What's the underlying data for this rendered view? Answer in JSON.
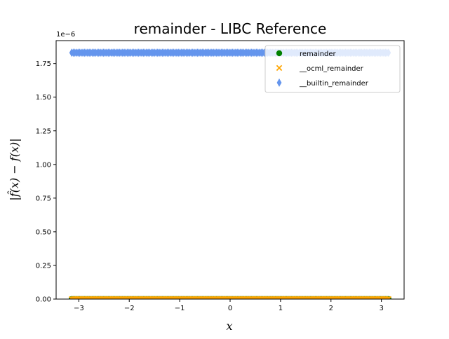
{
  "chart_data": {
    "type": "scatter",
    "title": "remainder - LIBC Reference",
    "xlabel": "x",
    "ylabel": "|f̂(x) − f(x)|",
    "y_offset_text": "1e−6",
    "xlim": [
      -3.45,
      3.45
    ],
    "ylim": [
      0,
      1.92
    ],
    "x_ticks": [
      -3,
      -2,
      -1,
      0,
      1,
      2,
      3
    ],
    "x_tick_labels": [
      "−3",
      "−2",
      "−1",
      "0",
      "1",
      "2",
      "3"
    ],
    "y_ticks": [
      0.0,
      0.25,
      0.5,
      0.75,
      1.0,
      1.25,
      1.5,
      1.75
    ],
    "y_tick_labels": [
      "0.00",
      "0.25",
      "0.50",
      "0.75",
      "1.00",
      "1.25",
      "1.50",
      "1.75"
    ],
    "x_domain": [
      -3.14159,
      3.14159
    ],
    "grid": false,
    "legend_placement": "top-right",
    "series": [
      {
        "name": "remainder",
        "marker": "circle",
        "color": "#008000",
        "constant_value": 0.0,
        "count": 200
      },
      {
        "name": "__ocml_remainder",
        "marker": "x",
        "color": "#FFA500",
        "constant_value": 0.0,
        "count": 200
      },
      {
        "name": "__builtin_remainder",
        "marker": "thin_diamond",
        "color": "#6495ED",
        "constant_value": 1.83,
        "count": 200
      }
    ]
  }
}
